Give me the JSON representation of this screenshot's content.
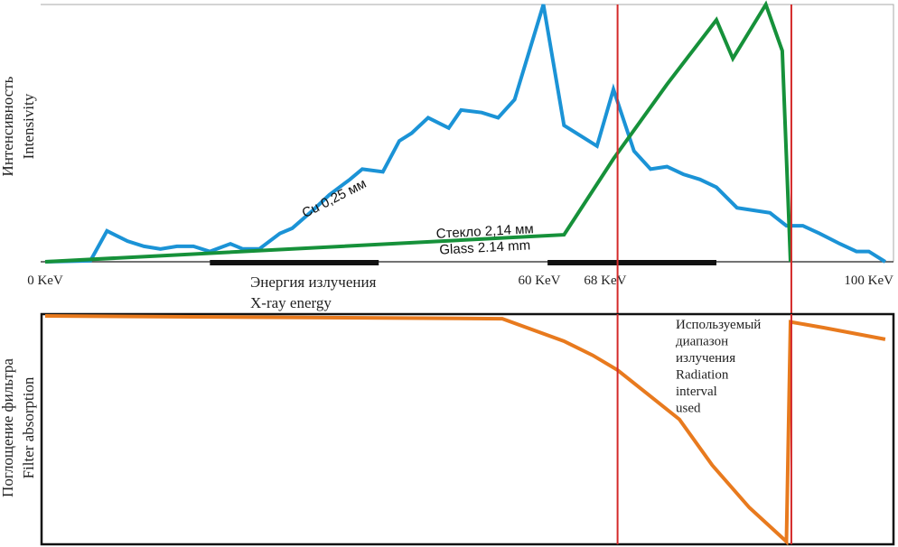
{
  "chart_data": [
    {
      "type": "line",
      "x_label": [
        "Энергия излучения",
        "X-ray energy"
      ],
      "y_label": [
        "Интенсивность",
        "Intensivity"
      ],
      "xlim": [
        0,
        103
      ],
      "ylim": [
        0,
        100
      ],
      "xticks": [
        {
          "value": 0,
          "label": "0 KeV"
        },
        {
          "value": 60,
          "label": "60 KeV"
        },
        {
          "value": 68,
          "label": "68 KeV"
        },
        {
          "value": 100,
          "label": "100 KeV"
        }
      ],
      "bands": [
        [
          20,
          40.5
        ],
        [
          61,
          81.5
        ]
      ],
      "vlines": [
        69.5,
        90.6
      ],
      "vline_color": "#d42a2a",
      "series": [
        {
          "labels": [
            "Cu 0,25 мм"
          ],
          "color": "#1b93d6",
          "x": [
            0,
            5.5,
            7.5,
            10,
            12,
            14,
            16,
            18,
            20,
            22.5,
            24,
            26,
            28.5,
            30,
            32.5,
            34.5,
            37,
            38.5,
            41,
            43,
            44.5,
            46.5,
            49,
            50.5,
            53,
            55,
            57,
            60.5,
            63,
            67,
            69,
            71.5,
            73.5,
            75.5,
            77.5,
            79.5,
            81.5,
            84,
            86,
            88,
            90,
            92,
            94,
            96.5,
            98.5,
            100,
            102
          ],
          "values": [
            0,
            0.4,
            12,
            8,
            6,
            5,
            6,
            6,
            4,
            7,
            5,
            5,
            11,
            13,
            20,
            26,
            32,
            36,
            35,
            47,
            50,
            56,
            52,
            59,
            58,
            56,
            63,
            100,
            53,
            45,
            67,
            43,
            36,
            37,
            34,
            32,
            29,
            21,
            20,
            19,
            14,
            14,
            11,
            7,
            4,
            4,
            0
          ]
        },
        {
          "labels": [
            "Стекло 2,14 мм",
            "Glass 2.14 mm"
          ],
          "color": "#16913a",
          "x": [
            0,
            63,
            69,
            75.5,
            81.5,
            83.5,
            87.5,
            89.5,
            90.5
          ],
          "values": [
            0,
            10.5,
            40,
            69,
            94,
            79,
            100,
            82,
            0
          ]
        }
      ]
    },
    {
      "type": "line",
      "y_label": [
        "Поглощение фильтра",
        "Filter absorption"
      ],
      "annotation": [
        "Используемый",
        "диапазон",
        "излучения",
        "Radiation",
        "interval",
        "used"
      ],
      "xlim": [
        0,
        103
      ],
      "ylim": [
        0,
        100
      ],
      "vlines": [
        69.5,
        90.6
      ],
      "vline_color": "#d42a2a",
      "series": [
        {
          "color": "#e87a1e",
          "x": [
            0,
            55.5,
            63,
            66.5,
            69.5,
            73,
            77,
            81,
            85.5,
            90,
            90.5,
            94.5,
            102
          ],
          "values": [
            99.6,
            98.4,
            88.6,
            82.4,
            76,
            66,
            54.5,
            34.5,
            16,
            1.2,
            97,
            94.5,
            89.4
          ]
        }
      ]
    }
  ]
}
